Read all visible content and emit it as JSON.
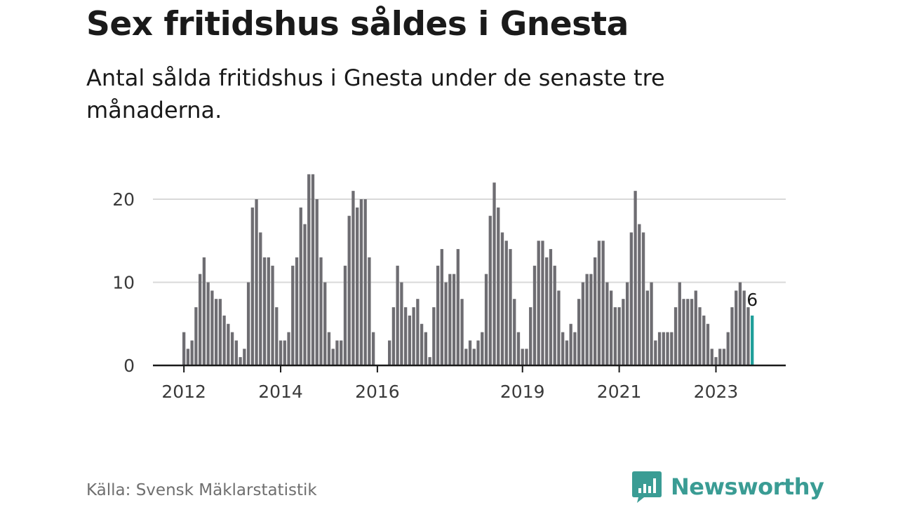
{
  "title": "Sex fritidshus såldes i Gnesta",
  "subtitle": "Antal sålda fritidshus i Gnesta under de senaste tre månaderna.",
  "source": "Källa: Svensk Mäklarstatistik",
  "brand": {
    "name": "Newsworthy",
    "color": "#3a9c94"
  },
  "colors": {
    "bar": "#6e6d72",
    "highlight": "#1f9e9a",
    "grid": "#d9d9d9",
    "axis": "#1a1a1a"
  },
  "chart_data": {
    "type": "bar",
    "start": "2012-01",
    "frequency": "monthly",
    "title": "Sex fritidshus såldes i Gnesta",
    "xlabel": "",
    "ylabel": "",
    "ylim": [
      0,
      23
    ],
    "yticks": [
      0,
      10,
      20
    ],
    "xticks": [
      "2012",
      "2014",
      "2016",
      "2019",
      "2021",
      "2023"
    ],
    "grid": true,
    "highlight_last": true,
    "last_label": "6",
    "values": [
      4,
      2,
      3,
      7,
      11,
      13,
      10,
      9,
      8,
      8,
      6,
      5,
      4,
      3,
      1,
      2,
      10,
      19,
      20,
      16,
      13,
      13,
      12,
      7,
      3,
      3,
      4,
      12,
      13,
      19,
      17,
      23,
      23,
      20,
      13,
      10,
      4,
      2,
      3,
      3,
      12,
      18,
      21,
      19,
      20,
      20,
      13,
      4,
      0,
      0,
      0,
      3,
      7,
      12,
      10,
      7,
      6,
      7,
      8,
      5,
      4,
      1,
      7,
      12,
      14,
      10,
      11,
      11,
      14,
      8,
      2,
      3,
      2,
      3,
      4,
      11,
      18,
      22,
      19,
      16,
      15,
      14,
      8,
      4,
      2,
      2,
      7,
      12,
      15,
      15,
      13,
      14,
      12,
      9,
      4,
      3,
      5,
      4,
      8,
      10,
      11,
      11,
      13,
      15,
      15,
      10,
      9,
      7,
      7,
      8,
      10,
      16,
      21,
      17,
      16,
      9,
      10,
      3,
      4,
      4,
      4,
      4,
      7,
      10,
      8,
      8,
      8,
      9,
      7,
      6,
      5,
      2,
      1,
      2,
      2,
      4,
      7,
      9,
      10,
      9,
      7,
      6
    ]
  }
}
